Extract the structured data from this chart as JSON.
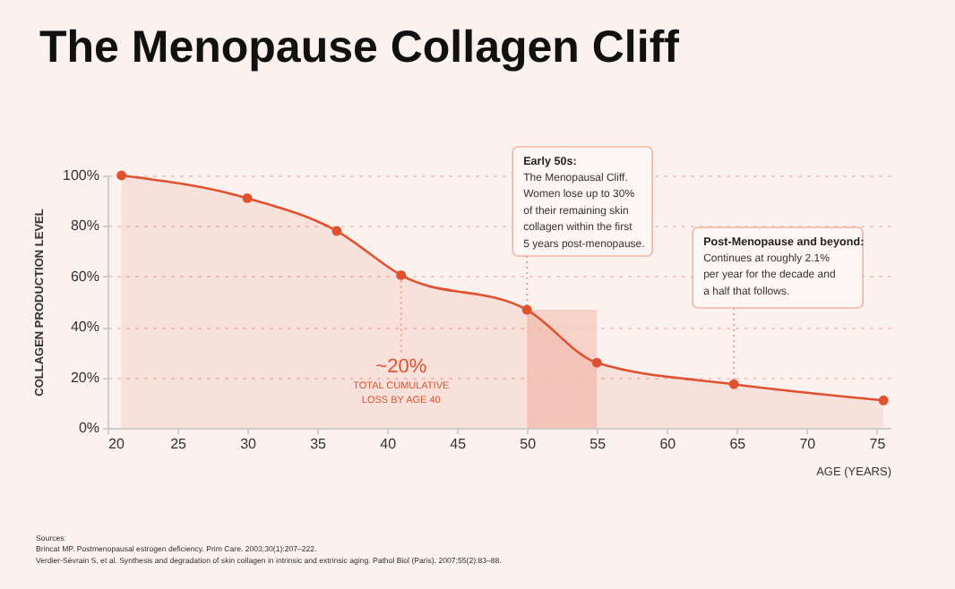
{
  "chart_data": {
    "type": "area",
    "title": "The Menopause Collagen Cliff",
    "xlabel": "AGE (YEARS)",
    "ylabel": "COLLAGEN PRODUCTION LEVEL",
    "x": [
      21,
      30,
      36.4,
      41,
      50,
      55,
      64.8,
      75.5
    ],
    "series": [
      {
        "color": "#e0522f",
        "values": [
          100,
          91,
          78,
          60.5,
          46.8,
          25.8,
          17.3,
          10.9
        ]
      }
    ],
    "xlim": [
      20,
      76
    ],
    "xticks": [
      20,
      25,
      30,
      35,
      40,
      45,
      50,
      55,
      60,
      65,
      70,
      75
    ],
    "ylim": [
      0,
      100
    ],
    "yticks": [
      {
        "value": 0,
        "label": "0%"
      },
      {
        "value": 20,
        "label": "20%"
      },
      {
        "value": 40,
        "label": "40%"
      },
      {
        "value": 60,
        "label": "60%"
      },
      {
        "value": 80,
        "label": "80%"
      },
      {
        "value": 100,
        "label": "100%"
      }
    ],
    "grid": "y",
    "marker": "circle",
    "line_style": "solid",
    "bands": [
      {
        "axis": "x",
        "from": 50,
        "to": 55,
        "color": "#f6cbbf"
      }
    ],
    "annotations": [
      {
        "text": "~20%\nTOTAL CUMULATIVE\nLOSS BY AGE 40",
        "x": 41,
        "y": 60.5
      },
      {
        "text": "Early 50s:\nThe Menopausal Cliff.\nWomen lose up to 30%\nof their remaining skin\ncollagen within the first\n5 years post-menopause.",
        "x": 50,
        "y": 46.8
      },
      {
        "text": "Post-Menopause and beyond:\nContinues at roughly 2.1%\nper year for the decade and\na half that follows.",
        "x": 64.8,
        "y": 17.3
      },
      "Sources:\nBrincat MP. Postmenopausal estrogen deficiency. Prim Care. 2003;30(1):207–222.\nVerdier-Sévrain S, et al. Synthesis and degradation of skin collagen in intrinsic and extrinsic aging. Pathol Biol (Paris). 2007;55(2):83–88."
    ]
  }
}
